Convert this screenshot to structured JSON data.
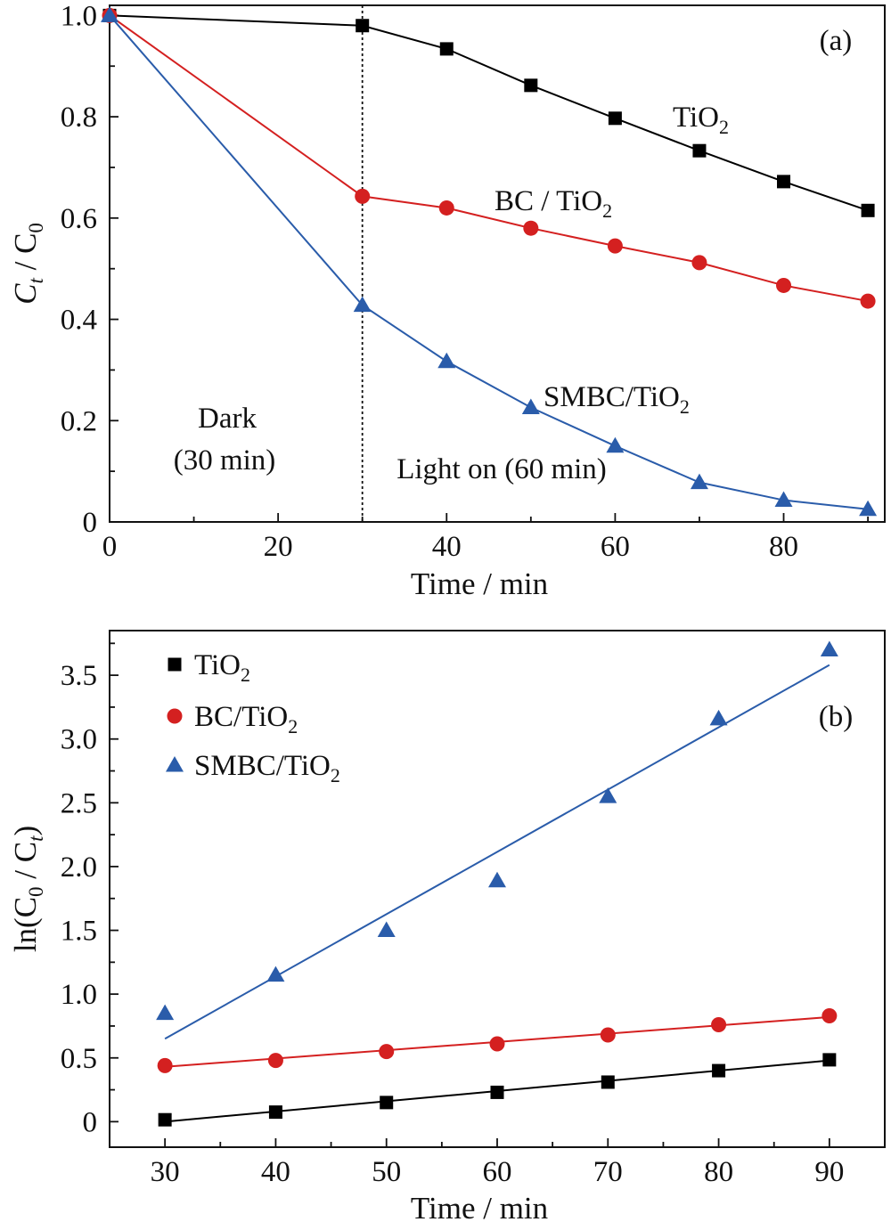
{
  "chart_data": [
    {
      "type": "line",
      "panel_label": "(a)",
      "x": [
        0,
        30,
        40,
        50,
        60,
        70,
        80,
        90
      ],
      "xlim": [
        0,
        92
      ],
      "ylim": [
        0,
        1.02
      ],
      "xticks": [
        0,
        20,
        40,
        60,
        80
      ],
      "yticks": [
        0,
        0.2,
        0.4,
        0.6,
        0.8,
        1.0
      ],
      "ytick_labels": [
        "0",
        "0.2",
        "0.4",
        "0.6",
        "0.8",
        "1.0"
      ],
      "xlabel": "Time / min",
      "ylabel_main": "C",
      "ylabel_sub1": "t",
      "ylabel_mid": " / C",
      "ylabel_sub2": "0",
      "series": [
        {
          "name": "TiO2",
          "label_main": "TiO",
          "label_sub": "2",
          "color": "#000000",
          "marker": "square",
          "values": [
            1.0,
            0.98,
            0.934,
            0.862,
            0.797,
            0.733,
            0.672,
            0.615
          ]
        },
        {
          "name": "BC / TiO2",
          "label_main": "BC / TiO",
          "label_sub": "2",
          "color": "#d42020",
          "marker": "circle",
          "values": [
            1.0,
            0.643,
            0.62,
            0.58,
            0.545,
            0.512,
            0.467,
            0.436
          ]
        },
        {
          "name": "SMBC/TiO2",
          "label_main": "SMBC/TiO",
          "label_sub": "2",
          "color": "#2a5caa",
          "marker": "triangle",
          "values": [
            1.0,
            0.428,
            0.317,
            0.226,
            0.15,
            0.078,
            0.043,
            0.025
          ]
        }
      ],
      "divider_x": 30,
      "annotations": {
        "dark_line1": "Dark",
        "dark_line2": "(30 min)",
        "light": "Light on (60 min)"
      }
    },
    {
      "type": "scatter",
      "panel_label": "(b)",
      "x": [
        30,
        40,
        50,
        60,
        70,
        80,
        90
      ],
      "xlim": [
        25,
        95
      ],
      "ylim": [
        -0.2,
        3.85
      ],
      "xticks": [
        30,
        40,
        50,
        60,
        70,
        80,
        90
      ],
      "yticks": [
        0,
        0.5,
        1.0,
        1.5,
        2.0,
        2.5,
        3.0,
        3.5
      ],
      "ytick_labels": [
        "0",
        "0.5",
        "1.0",
        "1.5",
        "2.0",
        "2.5",
        "3.0",
        "3.5"
      ],
      "xlabel": "Time / min",
      "ylabel_pre": "ln(C",
      "ylabel_sub1": "0",
      "ylabel_mid": " / C",
      "ylabel_sub2": "t",
      "ylabel_post": ")",
      "legend_position": "top-left",
      "series": [
        {
          "name": "TiO2",
          "label_main": "TiO",
          "label_sub": "2",
          "color": "#000000",
          "marker": "square",
          "values": [
            0.015,
            0.075,
            0.15,
            0.23,
            0.31,
            0.4,
            0.485
          ],
          "fit": [
            0.0,
            0.48
          ]
        },
        {
          "name": "BC/TiO2",
          "label_main": "BC/TiO",
          "label_sub": "2",
          "color": "#d42020",
          "marker": "circle",
          "values": [
            0.44,
            0.48,
            0.55,
            0.61,
            0.68,
            0.76,
            0.83
          ],
          "fit": [
            0.43,
            0.82
          ]
        },
        {
          "name": "SMBC/TiO2",
          "label_main": "SMBC/TiO",
          "label_sub": "2",
          "color": "#2a5caa",
          "marker": "triangle",
          "values": [
            0.85,
            1.15,
            1.5,
            1.89,
            2.55,
            3.16,
            3.7
          ],
          "fit": [
            0.65,
            3.58
          ]
        }
      ]
    }
  ]
}
